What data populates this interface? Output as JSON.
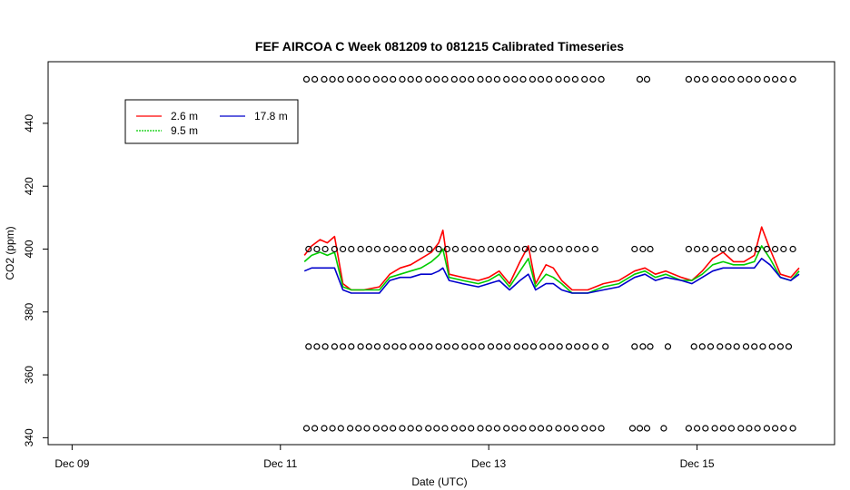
{
  "chart_data": {
    "type": "line",
    "title": "FEF AIRCOA C  Week 081209 to 081215  Calibrated Timeseries",
    "xlabel": "Date (UTC)",
    "ylabel": "CO2 (ppm)",
    "x_ticks": [
      "Dec 09",
      "Dec 11",
      "Dec 13",
      "Dec 15"
    ],
    "x_tick_values": [
      9,
      11,
      13,
      15
    ],
    "y_ticks": [
      "340",
      "360",
      "380",
      "400",
      "420",
      "440"
    ],
    "y_tick_values": [
      340,
      360,
      380,
      400,
      420,
      440
    ],
    "xlim": [
      8.77,
      16.32
    ],
    "ylim": [
      337.8,
      459.6
    ],
    "grid": false,
    "legend": {
      "placement": "top-left",
      "entries": [
        {
          "name": "2.6 m",
          "color": "#ff0000"
        },
        {
          "name": "9.5 m",
          "color": "#00cc00"
        },
        {
          "name": "17.8 m",
          "color": "#0000cc"
        }
      ]
    },
    "series": [
      {
        "name": "2.6 m",
        "color": "#ff0000",
        "x": [
          11.23,
          11.3,
          11.38,
          11.45,
          11.52,
          11.6,
          11.68,
          11.8,
          11.95,
          12.05,
          12.15,
          12.25,
          12.35,
          12.45,
          12.52,
          12.56,
          12.62,
          12.75,
          12.9,
          13.0,
          13.1,
          13.2,
          13.3,
          13.38,
          13.45,
          13.55,
          13.62,
          13.7,
          13.8,
          13.95,
          14.1,
          14.25,
          14.4,
          14.5,
          14.6,
          14.7,
          14.85,
          14.95,
          15.05,
          15.15,
          15.25,
          15.35,
          15.45,
          15.55,
          15.62,
          15.7,
          15.8,
          15.9,
          15.98
        ],
        "y": [
          398,
          401,
          403,
          402,
          404,
          389,
          387,
          387,
          388,
          392,
          394,
          395,
          397,
          399,
          402,
          406,
          392,
          391,
          390,
          391,
          393,
          389,
          396,
          401,
          389,
          395,
          394,
          390,
          387,
          387,
          389,
          390,
          393,
          394,
          392,
          393,
          391,
          390,
          393,
          397,
          399,
          396,
          396,
          398,
          407,
          400,
          392,
          391,
          394
        ]
      },
      {
        "name": "9.5 m",
        "color": "#00cc00",
        "x": [
          11.23,
          11.3,
          11.38,
          11.45,
          11.52,
          11.6,
          11.68,
          11.8,
          11.95,
          12.05,
          12.15,
          12.25,
          12.35,
          12.45,
          12.52,
          12.56,
          12.62,
          12.75,
          12.9,
          13.0,
          13.1,
          13.2,
          13.3,
          13.38,
          13.45,
          13.55,
          13.62,
          13.7,
          13.8,
          13.95,
          14.1,
          14.25,
          14.4,
          14.5,
          14.6,
          14.7,
          14.85,
          14.95,
          15.05,
          15.15,
          15.25,
          15.35,
          15.45,
          15.55,
          15.62,
          15.7,
          15.8,
          15.9,
          15.98
        ],
        "y": [
          396,
          398,
          399,
          398,
          399,
          388,
          387,
          387,
          387,
          391,
          392,
          393,
          394,
          396,
          398,
          400,
          391,
          390,
          389,
          390,
          392,
          388,
          393,
          397,
          388,
          392,
          391,
          389,
          386,
          386,
          388,
          389,
          392,
          393,
          391,
          392,
          390,
          390,
          392,
          395,
          396,
          395,
          395,
          396,
          401,
          397,
          391,
          390,
          393
        ]
      },
      {
        "name": "17.8 m",
        "color": "#0000cc",
        "x": [
          11.23,
          11.3,
          11.38,
          11.45,
          11.52,
          11.6,
          11.68,
          11.8,
          11.95,
          12.05,
          12.15,
          12.25,
          12.35,
          12.45,
          12.52,
          12.56,
          12.62,
          12.75,
          12.9,
          13.0,
          13.1,
          13.2,
          13.3,
          13.38,
          13.45,
          13.55,
          13.62,
          13.7,
          13.8,
          13.95,
          14.1,
          14.25,
          14.4,
          14.5,
          14.6,
          14.7,
          14.85,
          14.95,
          15.05,
          15.15,
          15.25,
          15.35,
          15.45,
          15.55,
          15.62,
          15.7,
          15.8,
          15.9,
          15.98
        ],
        "y": [
          393,
          394,
          394,
          394,
          394,
          387,
          386,
          386,
          386,
          390,
          391,
          391,
          392,
          392,
          393,
          394,
          390,
          389,
          388,
          389,
          390,
          387,
          390,
          392,
          387,
          389,
          389,
          387,
          386,
          386,
          387,
          388,
          391,
          392,
          390,
          391,
          390,
          389,
          391,
          393,
          394,
          394,
          394,
          394,
          397,
          395,
          391,
          390,
          392
        ]
      },
      {
        "name": "",
        "kind": "points",
        "color": "#000000",
        "x": [
          11.25,
          11.33,
          11.42,
          11.5,
          11.58,
          11.67,
          11.75,
          11.83,
          11.92,
          12.0,
          12.08,
          12.17,
          12.25,
          12.33,
          12.42,
          12.5,
          12.58,
          12.67,
          12.75,
          12.83,
          12.92,
          13.0,
          13.08,
          13.17,
          13.25,
          13.33,
          13.42,
          13.5,
          13.58,
          13.67,
          13.75,
          13.83,
          13.92,
          14.0,
          14.08,
          14.45,
          14.52,
          14.92,
          15.0,
          15.08,
          15.17,
          15.25,
          15.33,
          15.42,
          15.5,
          15.58,
          15.67,
          15.75,
          15.83,
          15.92
        ],
        "y": [
          454,
          454,
          454,
          454,
          454,
          454,
          454,
          454,
          454,
          454,
          454,
          454,
          454,
          454,
          454,
          454,
          454,
          454,
          454,
          454,
          454,
          454,
          454,
          454,
          454,
          454,
          454,
          454,
          454,
          454,
          454,
          454,
          454,
          454,
          454,
          454,
          454,
          454,
          454,
          454,
          454,
          454,
          454,
          454,
          454,
          454,
          454,
          454,
          454,
          454
        ]
      },
      {
        "name": "",
        "kind": "points",
        "color": "#000000",
        "x": [
          11.27,
          11.35,
          11.43,
          11.52,
          11.6,
          11.68,
          11.77,
          11.85,
          11.93,
          12.02,
          12.1,
          12.18,
          12.27,
          12.35,
          12.43,
          12.52,
          12.6,
          12.68,
          12.77,
          12.85,
          12.93,
          13.02,
          13.1,
          13.18,
          13.27,
          13.35,
          13.43,
          13.52,
          13.6,
          13.68,
          13.77,
          13.85,
          13.93,
          14.02,
          14.4,
          14.48,
          14.55,
          14.92,
          15.0,
          15.08,
          15.17,
          15.25,
          15.33,
          15.42,
          15.5,
          15.58,
          15.67,
          15.75,
          15.83,
          15.92
        ],
        "y": [
          400,
          400,
          400,
          400,
          400,
          400,
          400,
          400,
          400,
          400,
          400,
          400,
          400,
          400,
          400,
          400,
          400,
          400,
          400,
          400,
          400,
          400,
          400,
          400,
          400,
          400,
          400,
          400,
          400,
          400,
          400,
          400,
          400,
          400,
          400,
          400,
          400,
          400,
          400,
          400,
          400,
          400,
          400,
          400,
          400,
          400,
          400,
          400,
          400,
          400
        ]
      },
      {
        "name": "",
        "kind": "points",
        "color": "#000000",
        "x": [
          11.27,
          11.35,
          11.43,
          11.52,
          11.6,
          11.68,
          11.77,
          11.85,
          11.93,
          12.02,
          12.1,
          12.18,
          12.27,
          12.35,
          12.43,
          12.52,
          12.6,
          12.68,
          12.77,
          12.85,
          12.93,
          13.02,
          13.1,
          13.18,
          13.27,
          13.35,
          13.43,
          13.52,
          13.6,
          13.68,
          13.77,
          13.85,
          13.93,
          14.02,
          14.12,
          14.4,
          14.48,
          14.55,
          14.72,
          14.97,
          15.05,
          15.13,
          15.22,
          15.3,
          15.38,
          15.47,
          15.55,
          15.63,
          15.72,
          15.8,
          15.88
        ],
        "y": [
          369,
          369,
          369,
          369,
          369,
          369,
          369,
          369,
          369,
          369,
          369,
          369,
          369,
          369,
          369,
          369,
          369,
          369,
          369,
          369,
          369,
          369,
          369,
          369,
          369,
          369,
          369,
          369,
          369,
          369,
          369,
          369,
          369,
          369,
          369,
          369,
          369,
          369,
          369,
          369,
          369,
          369,
          369,
          369,
          369,
          369,
          369,
          369,
          369,
          369,
          369
        ]
      },
      {
        "name": "",
        "kind": "points",
        "color": "#000000",
        "x": [
          11.25,
          11.33,
          11.42,
          11.5,
          11.58,
          11.67,
          11.75,
          11.83,
          11.92,
          12.0,
          12.08,
          12.17,
          12.25,
          12.33,
          12.42,
          12.5,
          12.58,
          12.67,
          12.75,
          12.83,
          12.92,
          13.0,
          13.08,
          13.17,
          13.25,
          13.33,
          13.42,
          13.5,
          13.58,
          13.67,
          13.75,
          13.83,
          13.92,
          14.0,
          14.08,
          14.38,
          14.45,
          14.52,
          14.68,
          14.92,
          15.0,
          15.08,
          15.17,
          15.25,
          15.33,
          15.42,
          15.5,
          15.58,
          15.67,
          15.75,
          15.83,
          15.92
        ],
        "y": [
          343,
          343,
          343,
          343,
          343,
          343,
          343,
          343,
          343,
          343,
          343,
          343,
          343,
          343,
          343,
          343,
          343,
          343,
          343,
          343,
          343,
          343,
          343,
          343,
          343,
          343,
          343,
          343,
          343,
          343,
          343,
          343,
          343,
          343,
          343,
          343,
          343,
          343,
          343,
          343,
          343,
          343,
          343,
          343,
          343,
          343,
          343,
          343,
          343,
          343,
          343,
          343
        ]
      }
    ]
  }
}
